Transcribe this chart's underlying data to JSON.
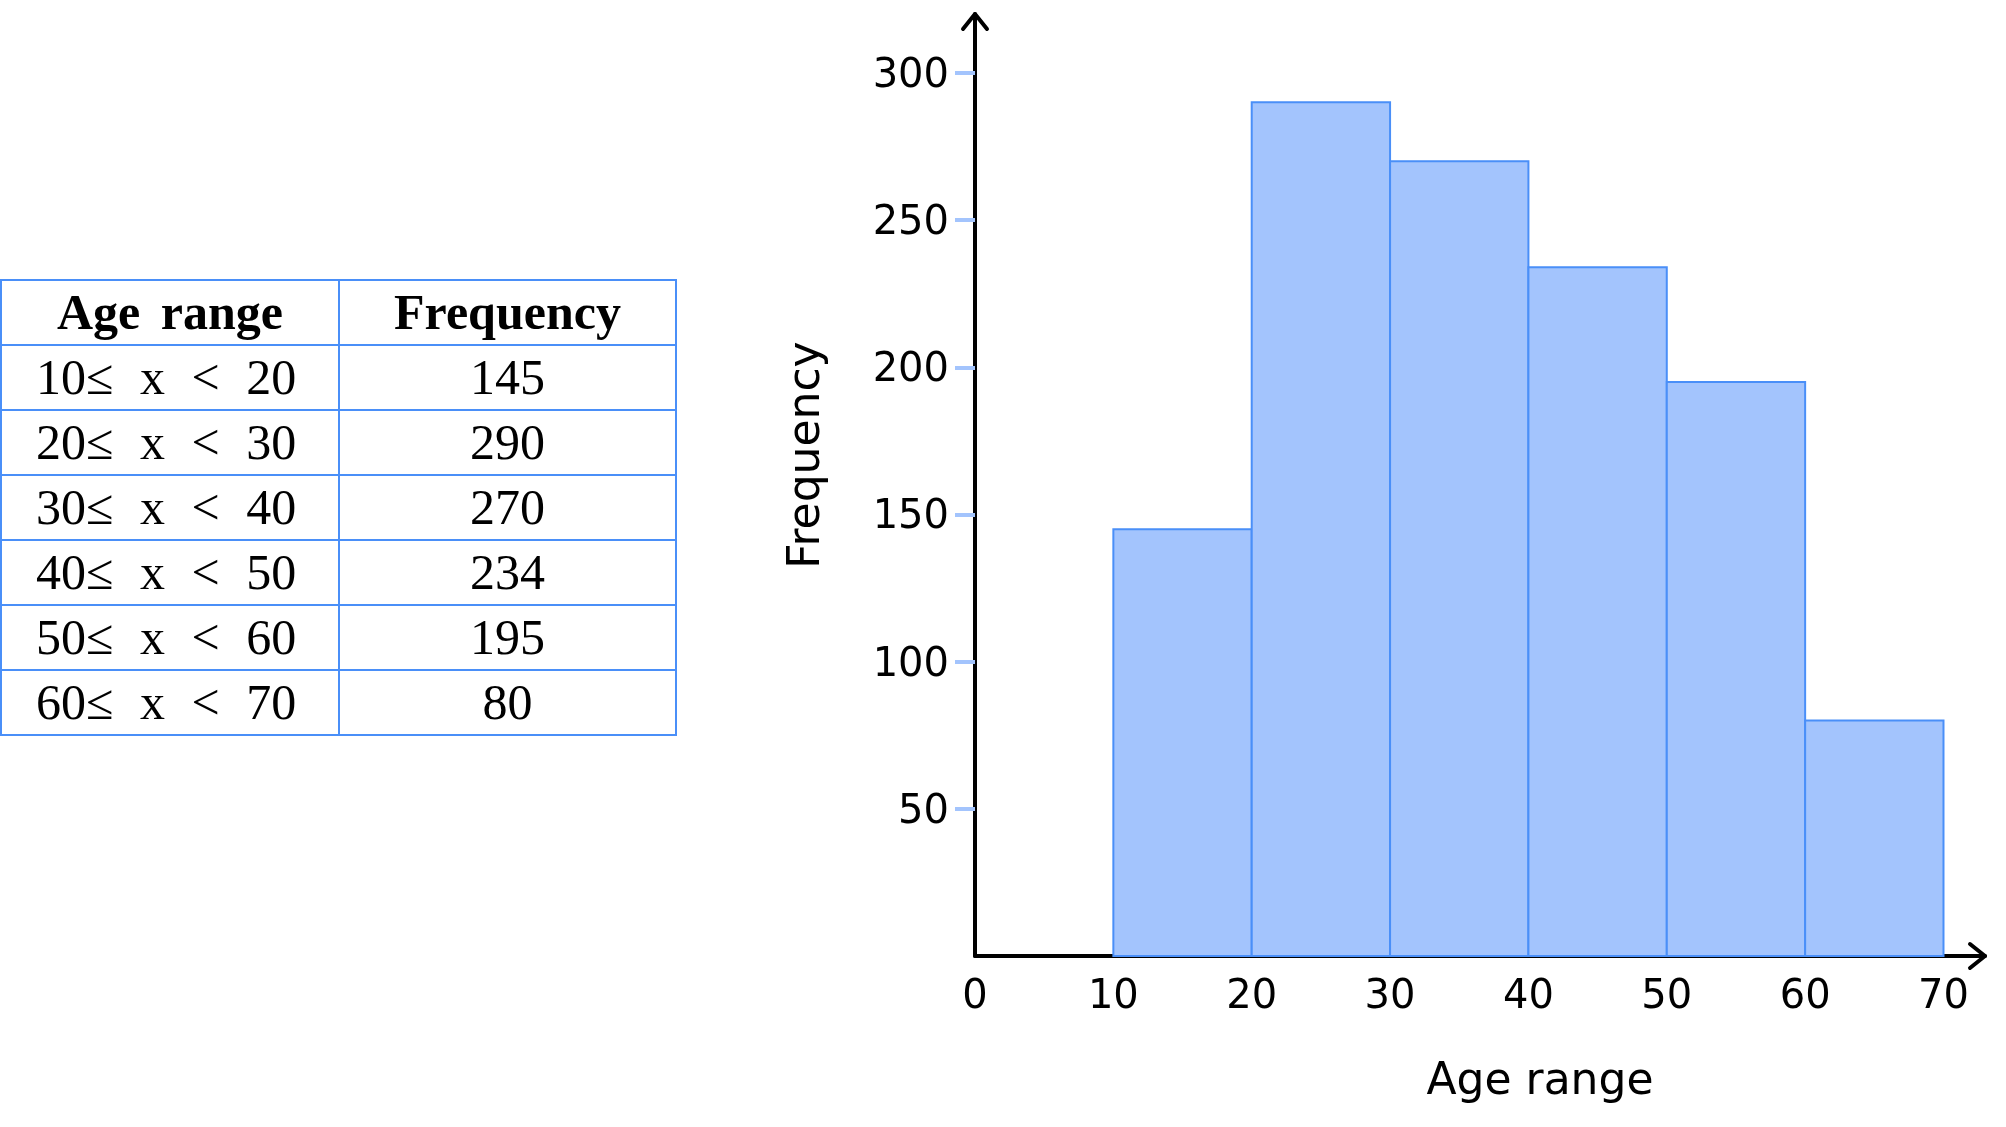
{
  "chart_data": [
    {
      "type": "other",
      "annotations": [
        "Age range",
        "Frequency"
      ],
      "categories": [
        "10≤ x < 20",
        "20≤ x < 30",
        "30≤ x < 40",
        "40≤ x < 50",
        "50≤ x < 60",
        "60≤ x < 70"
      ],
      "values": [
        145,
        290,
        270,
        234,
        195,
        80
      ],
      "data_labels": true
    },
    {
      "type": "histogram",
      "xlabel": "Age range",
      "ylabel": "Frequency",
      "bins": [
        10,
        20,
        30,
        40,
        50,
        60,
        70
      ],
      "values": [
        145,
        290,
        270,
        234,
        195,
        80
      ],
      "color": "#a3c4fd",
      "xlim": [
        0,
        73
      ],
      "xticks": [
        0,
        10,
        20,
        30,
        40,
        50,
        60,
        70
      ],
      "ylim": [
        0,
        320
      ],
      "yticks": [
        50,
        100,
        150,
        200,
        250,
        300
      ]
    }
  ]
}
